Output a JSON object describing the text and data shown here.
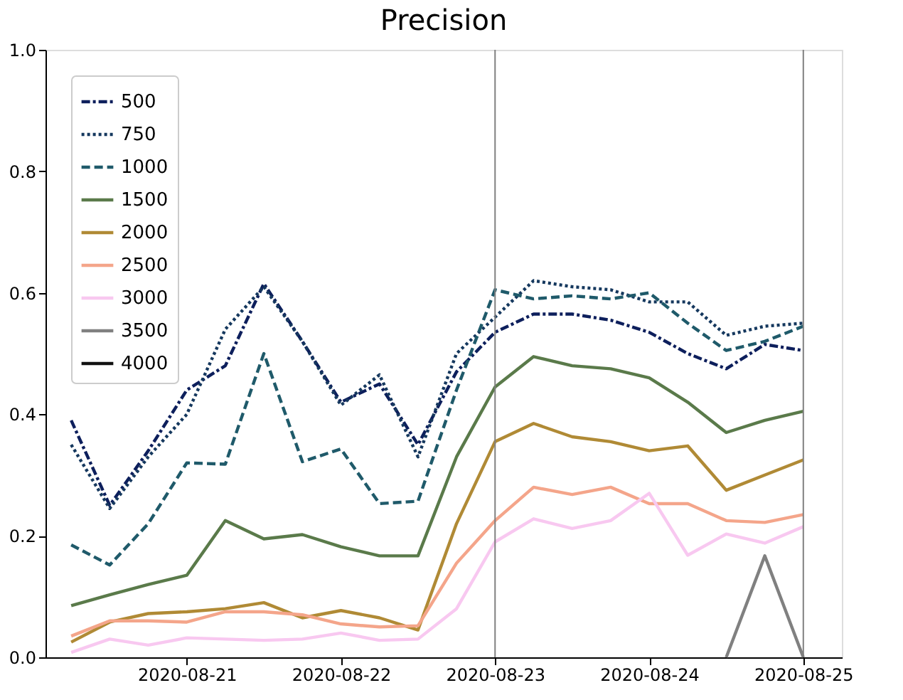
{
  "chart_data": {
    "type": "line",
    "title": "Precision",
    "x": [
      "2020-08-20T06:00",
      "2020-08-20T12:00",
      "2020-08-20T18:00",
      "2020-08-21T00:00",
      "2020-08-21T06:00",
      "2020-08-21T12:00",
      "2020-08-21T18:00",
      "2020-08-22T00:00",
      "2020-08-22T06:00",
      "2020-08-22T12:00",
      "2020-08-22T18:00",
      "2020-08-23T00:00",
      "2020-08-23T06:00",
      "2020-08-23T12:00",
      "2020-08-23T18:00",
      "2020-08-24T00:00",
      "2020-08-24T06:00",
      "2020-08-24T12:00",
      "2020-08-24T18:00",
      "2020-08-25T00:00"
    ],
    "series": [
      {
        "name": "500",
        "color": "#0d1f5c",
        "line_style": "dashdot",
        "values": [
          0.39,
          0.25,
          0.34,
          0.44,
          0.48,
          0.615,
          0.52,
          0.42,
          0.45,
          0.35,
          0.47,
          0.535,
          0.565,
          0.565,
          0.555,
          0.535,
          0.5,
          0.475,
          0.515,
          0.505
        ]
      },
      {
        "name": "750",
        "color": "#15385e",
        "line_style": "dotted",
        "values": [
          0.35,
          0.245,
          0.33,
          0.4,
          0.54,
          0.61,
          0.52,
          0.415,
          0.465,
          0.33,
          0.5,
          0.56,
          0.62,
          0.61,
          0.605,
          0.585,
          0.585,
          0.53,
          0.545,
          0.55
        ]
      },
      {
        "name": "1000",
        "color": "#1f5a6a",
        "line_style": "dashed",
        "values": [
          0.185,
          0.152,
          0.22,
          0.32,
          0.318,
          0.5,
          0.322,
          0.343,
          0.253,
          0.257,
          0.44,
          0.605,
          0.59,
          0.595,
          0.59,
          0.6,
          0.55,
          0.505,
          0.52,
          0.545
        ]
      },
      {
        "name": "1500",
        "color": "#5a7a4a",
        "line_style": "solid",
        "values": [
          0.085,
          0.103,
          0.12,
          0.135,
          0.225,
          0.195,
          0.202,
          0.182,
          0.167,
          0.167,
          0.33,
          0.445,
          0.495,
          0.48,
          0.475,
          0.46,
          0.42,
          0.37,
          0.39,
          0.405
        ]
      },
      {
        "name": "2000",
        "color": "#b08a35",
        "line_style": "solid",
        "values": [
          0.025,
          0.058,
          0.072,
          0.075,
          0.08,
          0.09,
          0.065,
          0.077,
          0.065,
          0.045,
          0.22,
          0.355,
          0.385,
          0.363,
          0.355,
          0.34,
          0.348,
          0.275,
          0.3,
          0.325
        ]
      },
      {
        "name": "2500",
        "color": "#f4a58a",
        "line_style": "solid",
        "values": [
          0.035,
          0.06,
          0.06,
          0.058,
          0.075,
          0.075,
          0.07,
          0.055,
          0.05,
          0.052,
          0.155,
          0.225,
          0.28,
          0.268,
          0.28,
          0.253,
          0.253,
          0.225,
          0.222,
          0.235
        ]
      },
      {
        "name": "3000",
        "color": "#f8c8f0",
        "line_style": "solid",
        "values": [
          0.008,
          0.03,
          0.02,
          0.032,
          0.03,
          0.028,
          0.03,
          0.04,
          0.028,
          0.03,
          0.08,
          0.19,
          0.228,
          0.212,
          0.225,
          0.27,
          0.168,
          0.203,
          0.188,
          0.215
        ]
      },
      {
        "name": "3500",
        "color": "#808080",
        "line_style": "solid",
        "values": [
          null,
          null,
          null,
          null,
          null,
          null,
          null,
          null,
          null,
          null,
          null,
          null,
          null,
          null,
          null,
          null,
          null,
          0.0,
          0.167,
          0.0
        ]
      },
      {
        "name": "4000",
        "color": "#111111",
        "line_style": "solid",
        "values": [
          null,
          null,
          null,
          null,
          null,
          null,
          null,
          null,
          null,
          null,
          null,
          null,
          null,
          null,
          null,
          null,
          null,
          null,
          null,
          null
        ]
      }
    ],
    "xlim": [
      "2020-08-20T02:00",
      "2020-08-25T06:00"
    ],
    "xticks": [
      "2020-08-21",
      "2020-08-22",
      "2020-08-23",
      "2020-08-24",
      "2020-08-25"
    ],
    "ylim": [
      0,
      1
    ],
    "yticks": [
      {
        "value": 0,
        "label": "0.0"
      },
      {
        "value": 0.2,
        "label": "0.2"
      },
      {
        "value": 0.4,
        "label": "0.4"
      },
      {
        "value": 0.6,
        "label": "0.6"
      },
      {
        "value": 0.8,
        "label": "0.8"
      },
      {
        "value": 1,
        "label": "1.0"
      }
    ],
    "ref_lines": [
      {
        "axis": "x",
        "value": "2020-08-23",
        "color": "#808080"
      },
      {
        "axis": "x",
        "value": "2020-08-25",
        "color": "#808080"
      }
    ],
    "grid": false,
    "legend": "top left",
    "marker": "none"
  }
}
